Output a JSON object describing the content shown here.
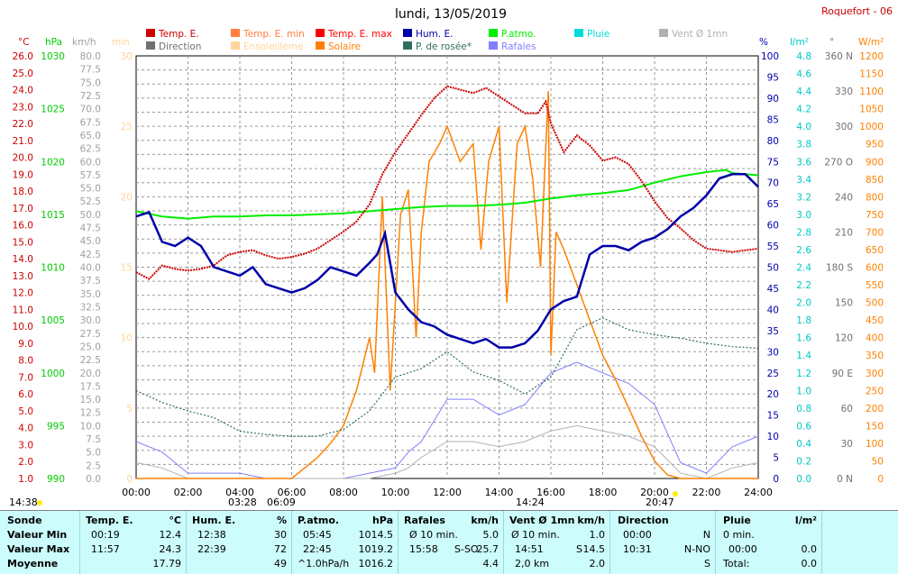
{
  "header": {
    "title": "lundi, 13/05/2019",
    "station": "Roquefort - 06"
  },
  "legend": [
    {
      "label": "Temp. E.",
      "color": "#cc0000"
    },
    {
      "label": "Temp. E. min",
      "color": "#ff7f3f"
    },
    {
      "label": "Temp. E. max",
      "color": "#ff0000"
    },
    {
      "label": "Hum. E.",
      "color": "#0000aa"
    },
    {
      "label": "P.atmo.",
      "color": "#00ee00"
    },
    {
      "label": "Pluie",
      "color": "#00dddd"
    },
    {
      "label": "Vent Ø 1mn",
      "color": "#b0b0b0"
    },
    {
      "label": "Direction",
      "color": "#707070"
    },
    {
      "label": "Ensoleilleme",
      "color": "#ffd49a"
    },
    {
      "label": "Solaire",
      "color": "#ff8000"
    },
    {
      "label": "P. de rosée*",
      "color": "#2f6f5f"
    },
    {
      "label": "Rafales",
      "color": "#8080ff"
    }
  ],
  "axes": {
    "temp": {
      "unit": "°C",
      "color": "#cc0000",
      "range": [
        1.0,
        26.0
      ],
      "step": 0.5
    },
    "press": {
      "unit": "hPa",
      "color": "#00cc00",
      "range": [
        990,
        1030
      ],
      "step": 5
    },
    "wind": {
      "unit": "km/h",
      "color": "#a0a0a0",
      "range": [
        0.0,
        80.0
      ],
      "step": 2.5
    },
    "sunmin": {
      "unit": "min",
      "color": "#ffd49a",
      "range": [
        0,
        30
      ],
      "step": 5
    },
    "hum": {
      "unit": "%",
      "color": "#0000aa",
      "range": [
        0,
        100
      ],
      "step": 5
    },
    "rain": {
      "unit": "l/m²",
      "color": "#00c8c8",
      "range": [
        0.0,
        4.8
      ],
      "step": 0.2
    },
    "dir": {
      "unit": "°",
      "color": "#707070",
      "ticks": [
        "0 N",
        "30",
        "60",
        "90 E",
        "120",
        "150",
        "180 S",
        "210",
        "240",
        "270 O",
        "300",
        "330",
        "360 N"
      ]
    },
    "solar": {
      "unit": "W/m²",
      "color": "#ff8000",
      "range": [
        0,
        1200
      ],
      "step": 50
    },
    "x_ticks": [
      "00:00",
      "02:00",
      "04:00",
      "06:00",
      "08:00",
      "10:00",
      "12:00",
      "14:00",
      "16:00",
      "18:00",
      "20:00",
      "22:00",
      "24:00"
    ]
  },
  "markers": {
    "left_time": "14:38",
    "sunrise": "03:28",
    "sunrise_b": "06:09",
    "moon": "14:24",
    "sunset": "20:47"
  },
  "chart_data": {
    "type": "line",
    "x_unit": "hour",
    "series": [
      {
        "name": "Temp. E.",
        "axis": "temp",
        "x": [
          0,
          0.5,
          1,
          1.5,
          2,
          2.5,
          3,
          3.5,
          4,
          4.5,
          5,
          5.5,
          6,
          6.5,
          7,
          7.5,
          8,
          8.5,
          9,
          9.5,
          10,
          10.5,
          11,
          11.5,
          12,
          12.5,
          13,
          13.5,
          14,
          14.5,
          15,
          15.5,
          15.8,
          16,
          16.5,
          17,
          17.5,
          18,
          18.5,
          19,
          19.5,
          20,
          20.5,
          21,
          21.5,
          22,
          22.5,
          23,
          23.5,
          24
        ],
        "values": [
          13.2,
          12.8,
          13.6,
          13.4,
          13.3,
          13.4,
          13.6,
          14.2,
          14.4,
          14.5,
          14.2,
          14.0,
          14.1,
          14.3,
          14.6,
          15.1,
          15.6,
          16.2,
          17.2,
          19.0,
          20.3,
          21.4,
          22.5,
          23.5,
          24.2,
          24.0,
          23.8,
          24.1,
          23.6,
          23.1,
          22.6,
          22.6,
          23.3,
          22.0,
          20.3,
          21.3,
          20.7,
          19.8,
          20.0,
          19.6,
          18.6,
          17.4,
          16.4,
          15.8,
          15.1,
          14.6,
          14.5,
          14.4,
          14.5,
          14.6
        ]
      },
      {
        "name": "Hum. E.",
        "axis": "hum",
        "x": [
          0,
          0.5,
          1,
          1.5,
          2,
          2.5,
          3,
          3.5,
          4,
          4.5,
          5,
          5.5,
          6,
          6.5,
          7,
          7.5,
          8,
          8.5,
          9,
          9.3,
          9.6,
          10,
          10.5,
          11,
          11.5,
          12,
          12.5,
          13,
          13.5,
          14,
          14.5,
          15,
          15.5,
          16,
          16.5,
          17,
          17.5,
          18,
          18.5,
          19,
          19.5,
          20,
          20.5,
          21,
          21.5,
          22,
          22.5,
          23,
          23.5,
          24
        ],
        "values": [
          62,
          63,
          56,
          55,
          57,
          55,
          50,
          49,
          48,
          50,
          46,
          45,
          44,
          45,
          47,
          50,
          49,
          48,
          51,
          53,
          58,
          44,
          40,
          37,
          36,
          34,
          33,
          32,
          33,
          31,
          31,
          32,
          35,
          40,
          42,
          43,
          53,
          55,
          55,
          54,
          56,
          57,
          59,
          62,
          64,
          67,
          71,
          72,
          72,
          69
        ]
      },
      {
        "name": "P.atmo.",
        "axis": "press",
        "x": [
          0,
          1,
          2,
          3,
          4,
          5,
          6,
          7,
          8,
          9,
          10,
          11,
          12,
          13,
          14,
          15,
          16,
          17,
          18,
          19,
          20,
          21,
          22,
          22.75,
          23,
          24
        ],
        "values": [
          1015.3,
          1014.8,
          1014.6,
          1014.8,
          1014.8,
          1014.9,
          1014.9,
          1015.0,
          1015.1,
          1015.3,
          1015.5,
          1015.7,
          1015.8,
          1015.8,
          1015.9,
          1016.1,
          1016.5,
          1016.8,
          1017.0,
          1017.3,
          1018.0,
          1018.6,
          1019.0,
          1019.2,
          1018.9,
          1018.7
        ]
      },
      {
        "name": "P. de rosée*",
        "axis": "temp",
        "x": [
          0,
          1,
          2,
          3,
          4,
          5,
          6,
          7,
          8,
          9,
          10,
          11,
          12,
          13,
          14,
          15,
          16,
          17,
          18,
          19,
          20,
          21,
          22,
          23,
          24
        ],
        "values": [
          6.2,
          5.5,
          5.0,
          4.6,
          3.8,
          3.6,
          3.5,
          3.5,
          3.9,
          5.0,
          7.0,
          7.5,
          8.5,
          7.3,
          6.8,
          6.0,
          7.0,
          9.8,
          10.5,
          9.8,
          9.5,
          9.3,
          9.0,
          8.8,
          8.7
        ]
      },
      {
        "name": "Solaire",
        "axis": "solar",
        "x": [
          0,
          6,
          6.5,
          7,
          7.5,
          8,
          8.5,
          9,
          9.2,
          9.5,
          9.8,
          10,
          10.2,
          10.5,
          10.8,
          11,
          11.3,
          11.7,
          12,
          12.5,
          13,
          13.3,
          13.6,
          14,
          14.3,
          14.7,
          15,
          15.3,
          15.6,
          15.9,
          16,
          16.2,
          16.5,
          17,
          17.5,
          18,
          18.5,
          19,
          19.5,
          20,
          20.5,
          21,
          21.5,
          22,
          24
        ],
        "values": [
          0,
          0,
          30,
          60,
          100,
          150,
          250,
          400,
          300,
          800,
          250,
          500,
          750,
          820,
          400,
          700,
          900,
          950,
          1000,
          900,
          950,
          650,
          900,
          1000,
          500,
          950,
          1000,
          850,
          600,
          1100,
          350,
          700,
          650,
          550,
          450,
          350,
          280,
          200,
          120,
          50,
          10,
          0,
          0,
          0,
          0
        ]
      },
      {
        "name": "Rafales",
        "axis": "wind",
        "x": [
          0,
          1,
          2,
          3,
          4,
          5,
          6,
          7,
          8,
          9,
          10,
          10.5,
          11,
          12,
          13,
          14,
          15,
          16,
          17,
          18,
          19,
          20,
          21,
          22,
          23,
          24
        ],
        "values": [
          7,
          5,
          1,
          1,
          1,
          0,
          0,
          0,
          0,
          1,
          2,
          5,
          7,
          15,
          15,
          12,
          14,
          20,
          22,
          20,
          18,
          14,
          3,
          1,
          6,
          8
        ]
      },
      {
        "name": "Vent Ø 1mn",
        "axis": "wind",
        "x": [
          0,
          1,
          2,
          3,
          4,
          5,
          6,
          7,
          8,
          9,
          10,
          10.5,
          11,
          12,
          13,
          14,
          15,
          16,
          17,
          18,
          19,
          20,
          21,
          22,
          23,
          24
        ],
        "values": [
          3,
          2,
          0,
          0,
          0,
          0,
          0,
          0,
          0,
          0,
          1,
          2,
          4,
          7,
          7,
          6,
          7,
          9,
          10,
          9,
          8,
          6,
          1,
          0,
          2,
          3
        ]
      }
    ]
  },
  "table": {
    "rows": [
      "Sonde",
      "Valeur Min",
      "Valeur Max",
      "Moyenne"
    ],
    "temp": {
      "title": "Temp. E.",
      "unit": "°C",
      "min_t": "00:19",
      "min": "12.4",
      "max_t": "11:57",
      "max": "24.3",
      "avg": "17.79"
    },
    "hum": {
      "title": "Hum. E.",
      "unit": "%",
      "min_t": "12:38",
      "min": "30",
      "max_t": "22:39",
      "max": "72",
      "avg": "49"
    },
    "press": {
      "title": "P.atmo.",
      "unit": "hPa",
      "min_t": "05:45",
      "min": "1014.5",
      "max_t": "22:45",
      "max": "1019.2",
      "avg_l": "^1.0hPa/h",
      "avg": "1016.2"
    },
    "gust": {
      "title": "Rafales",
      "unit": "km/h",
      "min_t": "Ø 10 min.",
      "min": "5.0",
      "max_t": "15:58",
      "max_d": "S-SO",
      "max": "25.7",
      "avg": "4.4"
    },
    "wind": {
      "title": "Vent Ø 1mn",
      "unit": "km/h",
      "min_t": "Ø 10 min.",
      "min": "1.0",
      "max_t": "14:51",
      "max_d": "S",
      "max": "14.5",
      "avg_l": "2,0 km",
      "avg": "2.0"
    },
    "dir": {
      "title": "Direction",
      "min_t": "00:00",
      "min": "N",
      "max_t": "10:31",
      "max": "N-NO",
      "avg": "S"
    },
    "rain": {
      "title": "Pluie",
      "unit": "l/m²",
      "min_t": "0 min.",
      "max_t": "00:00",
      "max": "0.0",
      "avg_l": "Total:",
      "avg": "0.0"
    }
  }
}
